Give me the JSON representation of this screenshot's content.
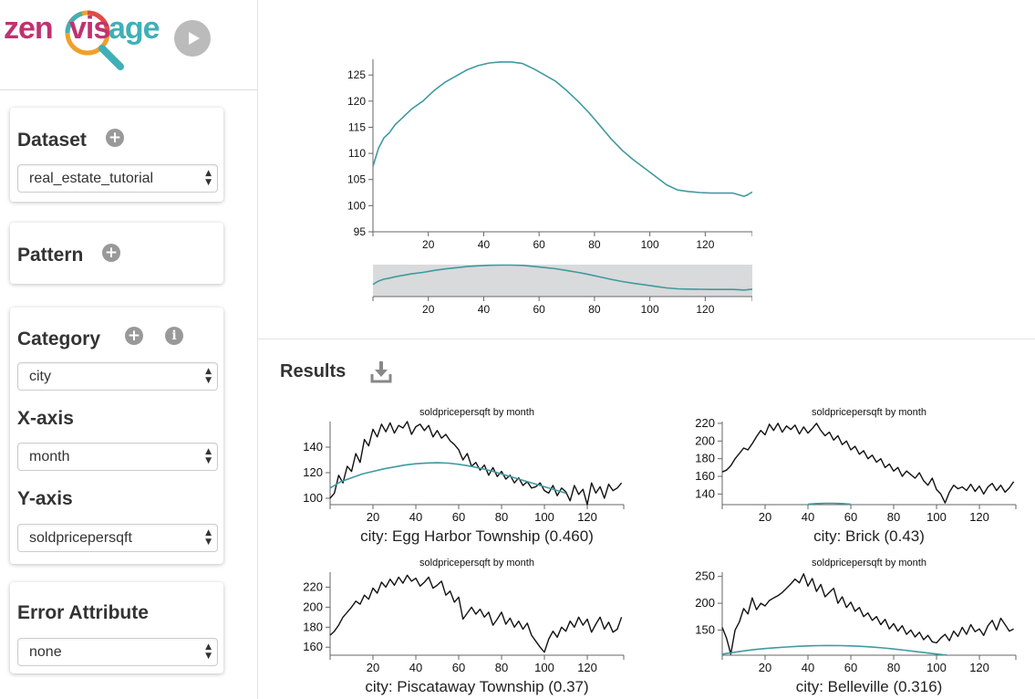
{
  "app": {
    "logo_parts": [
      "zen",
      "vis",
      "age"
    ],
    "play_icon": "play-icon"
  },
  "sidebar": {
    "dataset": {
      "title": "Dataset",
      "add_icon": "plus-icon",
      "value": "real_estate_tutorial"
    },
    "pattern": {
      "title": "Pattern",
      "add_icon": "plus-icon"
    },
    "category": {
      "title": "Category",
      "add_icon": "plus-icon",
      "info_icon": "info-icon",
      "value": "city"
    },
    "xaxis": {
      "label": "X-axis",
      "value": "month"
    },
    "yaxis": {
      "label": "Y-axis",
      "value": "soldpricepersqft"
    },
    "error_attribute": {
      "title": "Error Attribute",
      "value": "none"
    }
  },
  "results": {
    "title": "Results",
    "download_icon": "download-icon"
  },
  "colors": {
    "pattern_line": "#3f9a9f",
    "data_line": "#111111",
    "brush_bg": "#d8dadb"
  },
  "chart_data": [
    {
      "type": "line",
      "id": "sketch",
      "title": "",
      "xlim": [
        0,
        137
      ],
      "ylim": [
        95,
        128
      ],
      "xticks": [
        20,
        40,
        60,
        80,
        100,
        120
      ],
      "yticks": [
        95,
        100,
        105,
        110,
        115,
        120,
        125
      ],
      "series": [
        {
          "x": [
            0,
            2,
            4,
            6,
            8,
            10,
            14,
            18,
            22,
            26,
            30,
            34,
            38,
            42,
            46,
            50,
            54,
            58,
            62,
            66,
            70,
            74,
            78,
            82,
            86,
            90,
            94,
            98,
            102,
            106,
            110,
            114,
            118,
            122,
            126,
            130,
            134,
            135,
            137
          ],
          "y": [
            107.5,
            111,
            113,
            114,
            115.5,
            116.5,
            118.5,
            120,
            122,
            123.6,
            124.8,
            126,
            126.8,
            127.3,
            127.5,
            127.5,
            127.2,
            126.2,
            125,
            123.8,
            122,
            120,
            117.8,
            115.3,
            112.8,
            110.6,
            108.8,
            107.2,
            105.6,
            104,
            103,
            102.7,
            102.5,
            102.4,
            102.4,
            102.4,
            101.8,
            102,
            102.6
          ]
        }
      ]
    },
    {
      "type": "line",
      "id": "brush",
      "title": "",
      "xlim": [
        0,
        137
      ],
      "ylim": [
        95,
        128
      ],
      "xticks": [
        20,
        40,
        60,
        80,
        100,
        120
      ],
      "series": [
        {
          "x": [
            0,
            2,
            4,
            6,
            8,
            10,
            14,
            18,
            22,
            26,
            30,
            34,
            38,
            42,
            46,
            50,
            54,
            58,
            62,
            66,
            70,
            74,
            78,
            82,
            86,
            90,
            94,
            98,
            102,
            106,
            110,
            114,
            118,
            122,
            126,
            130,
            134,
            135,
            137
          ],
          "y": [
            107.5,
            111,
            113,
            114,
            115.5,
            116.5,
            118.5,
            120,
            122,
            123.6,
            124.8,
            126,
            126.8,
            127.3,
            127.5,
            127.5,
            127.2,
            126.2,
            125,
            123.8,
            122,
            120,
            117.8,
            115.3,
            112.8,
            110.6,
            108.8,
            107.2,
            105.6,
            104,
            103,
            102.7,
            102.5,
            102.4,
            102.4,
            102.4,
            101.8,
            102,
            102.6
          ]
        }
      ]
    },
    {
      "type": "line",
      "id": "result-1",
      "title": "soldpricepersqft by month",
      "caption": "city: Egg Harbor Township (0.460)",
      "xlim": [
        0,
        137
      ],
      "ylim": [
        95,
        160
      ],
      "xticks": [
        20,
        40,
        60,
        80,
        100,
        120
      ],
      "yticks": [
        100,
        120,
        140
      ],
      "series": [
        {
          "name": "data",
          "x": [
            0,
            2,
            4,
            6,
            8,
            10,
            12,
            14,
            16,
            18,
            20,
            22,
            24,
            26,
            28,
            30,
            32,
            34,
            36,
            38,
            40,
            42,
            44,
            46,
            48,
            50,
            52,
            54,
            56,
            58,
            60,
            62,
            64,
            66,
            68,
            70,
            72,
            74,
            76,
            78,
            80,
            82,
            84,
            86,
            88,
            90,
            92,
            94,
            96,
            98,
            100,
            102,
            104,
            106,
            108,
            110,
            112,
            114,
            116,
            118,
            120,
            122,
            124,
            126,
            128,
            130,
            132,
            134,
            136
          ],
          "y": [
            100,
            104,
            118,
            112,
            125,
            121,
            135,
            128,
            146,
            141,
            154,
            148,
            158,
            152,
            159,
            151,
            157,
            155,
            160,
            150,
            156,
            158,
            153,
            157,
            148,
            153,
            147,
            150,
            145,
            142,
            138,
            130,
            135,
            125,
            128,
            122,
            126,
            118,
            124,
            117,
            121,
            115,
            118,
            112,
            116,
            110,
            113,
            108,
            109,
            112,
            106,
            104,
            110,
            102,
            108,
            105,
            98,
            110,
            103,
            107,
            95,
            112,
            104,
            109,
            100,
            111,
            106,
            108,
            112
          ]
        },
        {
          "name": "pattern",
          "x": [
            0,
            5,
            10,
            15,
            20,
            25,
            30,
            35,
            40,
            45,
            50,
            55,
            60,
            65,
            70,
            75,
            80,
            85,
            90,
            95,
            100,
            105,
            110
          ],
          "y": [
            108,
            113,
            116,
            119,
            121,
            123,
            124.5,
            126,
            127,
            127.6,
            127.8,
            127.5,
            126.6,
            125.2,
            123.5,
            121.5,
            119,
            116.5,
            114,
            111.5,
            109,
            106.5,
            104
          ]
        }
      ]
    },
    {
      "type": "line",
      "id": "result-2",
      "title": "soldpricepersqft by month",
      "caption": "city: Brick (0.43)",
      "xlim": [
        0,
        137
      ],
      "ylim": [
        128,
        222
      ],
      "xticks": [
        20,
        40,
        60,
        80,
        100,
        120
      ],
      "yticks": [
        140,
        160,
        180,
        200,
        220
      ],
      "series": [
        {
          "name": "data",
          "x": [
            0,
            2,
            4,
            6,
            8,
            10,
            12,
            14,
            16,
            18,
            20,
            22,
            24,
            26,
            28,
            30,
            32,
            34,
            36,
            38,
            40,
            42,
            44,
            46,
            48,
            50,
            52,
            54,
            56,
            58,
            60,
            62,
            64,
            66,
            68,
            70,
            72,
            74,
            76,
            78,
            80,
            82,
            84,
            86,
            88,
            90,
            92,
            94,
            96,
            98,
            100,
            102,
            104,
            106,
            108,
            110,
            112,
            114,
            116,
            118,
            120,
            122,
            124,
            126,
            128,
            130,
            132,
            134,
            136
          ],
          "y": [
            165,
            167,
            172,
            180,
            186,
            192,
            190,
            197,
            205,
            212,
            207,
            219,
            212,
            220,
            210,
            217,
            213,
            218,
            208,
            216,
            209,
            214,
            220,
            212,
            206,
            210,
            201,
            206,
            196,
            200,
            190,
            194,
            185,
            189,
            180,
            184,
            176,
            180,
            170,
            174,
            166,
            170,
            160,
            166,
            162,
            158,
            164,
            155,
            150,
            158,
            145,
            140,
            130,
            142,
            150,
            146,
            148,
            144,
            151,
            143,
            149,
            140,
            148,
            152,
            144,
            150,
            142,
            147,
            154
          ]
        },
        {
          "name": "pattern",
          "x": [
            40,
            44,
            48,
            52,
            56,
            60
          ],
          "y": [
            128.5,
            129.2,
            129.6,
            129.6,
            129.2,
            128.5
          ]
        }
      ]
    },
    {
      "type": "line",
      "id": "result-3",
      "title": "soldpricepersqft by month",
      "caption": "city: Piscataway Township (0.37)",
      "xlim": [
        0,
        137
      ],
      "ylim": [
        152,
        235
      ],
      "xticks": [
        20,
        40,
        60,
        80,
        100,
        120
      ],
      "yticks": [
        160,
        180,
        200,
        220
      ],
      "series": [
        {
          "name": "data",
          "x": [
            0,
            2,
            4,
            6,
            8,
            10,
            12,
            14,
            16,
            18,
            20,
            22,
            24,
            26,
            28,
            30,
            32,
            34,
            36,
            38,
            40,
            42,
            44,
            46,
            48,
            50,
            52,
            54,
            56,
            58,
            60,
            62,
            64,
            66,
            68,
            70,
            72,
            74,
            76,
            78,
            80,
            82,
            84,
            86,
            88,
            90,
            92,
            94,
            96,
            98,
            100,
            102,
            104,
            106,
            108,
            110,
            112,
            114,
            116,
            118,
            120,
            122,
            124,
            126,
            128,
            130,
            132,
            134,
            136
          ],
          "y": [
            172,
            176,
            182,
            190,
            195,
            200,
            206,
            203,
            212,
            208,
            219,
            214,
            225,
            220,
            228,
            222,
            230,
            224,
            232,
            226,
            229,
            221,
            225,
            230,
            219,
            222,
            226,
            212,
            216,
            205,
            210,
            188,
            194,
            200,
            193,
            198,
            190,
            195,
            182,
            188,
            195,
            183,
            189,
            180,
            186,
            178,
            184,
            172,
            166,
            160,
            155,
            168,
            176,
            170,
            180,
            176,
            186,
            180,
            190,
            182,
            188,
            175,
            183,
            190,
            178,
            185,
            175,
            178,
            190
          ]
        }
      ]
    },
    {
      "type": "line",
      "id": "result-4",
      "title": "soldpricepersqft by month",
      "caption": "city: Belleville (0.316)",
      "xlim": [
        0,
        137
      ],
      "ylim": [
        103,
        258
      ],
      "xticks": [
        20,
        40,
        60,
        80,
        100,
        120
      ],
      "yticks": [
        150,
        200,
        250
      ],
      "series": [
        {
          "name": "data",
          "x": [
            0,
            2,
            4,
            6,
            8,
            10,
            12,
            14,
            16,
            18,
            20,
            22,
            24,
            26,
            28,
            30,
            32,
            34,
            36,
            38,
            40,
            42,
            44,
            46,
            48,
            50,
            52,
            54,
            56,
            58,
            60,
            62,
            64,
            66,
            68,
            70,
            72,
            74,
            76,
            78,
            80,
            82,
            84,
            86,
            88,
            90,
            92,
            94,
            96,
            98,
            100,
            102,
            104,
            106,
            108,
            110,
            112,
            114,
            116,
            118,
            120,
            122,
            124,
            126,
            128,
            130,
            132,
            134,
            136
          ],
          "y": [
            155,
            135,
            105,
            150,
            165,
            190,
            180,
            210,
            188,
            200,
            195,
            205,
            210,
            214,
            220,
            228,
            236,
            245,
            238,
            255,
            232,
            246,
            222,
            235,
            212,
            220,
            228,
            200,
            212,
            192,
            202,
            185,
            192,
            175,
            182,
            168,
            175,
            160,
            170,
            152,
            162,
            148,
            158,
            142,
            150,
            137,
            146,
            132,
            140,
            128,
            126,
            135,
            142,
            130,
            148,
            138,
            155,
            142,
            160,
            147,
            152,
            140,
            158,
            168,
            150,
            172,
            160,
            148,
            152
          ]
        },
        {
          "name": "pattern",
          "x": [
            0,
            5,
            10,
            15,
            20,
            25,
            30,
            35,
            40,
            45,
            50,
            55,
            60,
            65,
            70,
            75,
            80,
            85,
            90,
            95,
            100,
            105
          ],
          "y": [
            105,
            108,
            111,
            113.5,
            115.5,
            117,
            118.4,
            119.5,
            120.3,
            120.8,
            121,
            120.8,
            120.3,
            119.5,
            118.2,
            116.6,
            114.6,
            112.4,
            110,
            107.6,
            105.2,
            103
          ]
        }
      ]
    }
  ]
}
